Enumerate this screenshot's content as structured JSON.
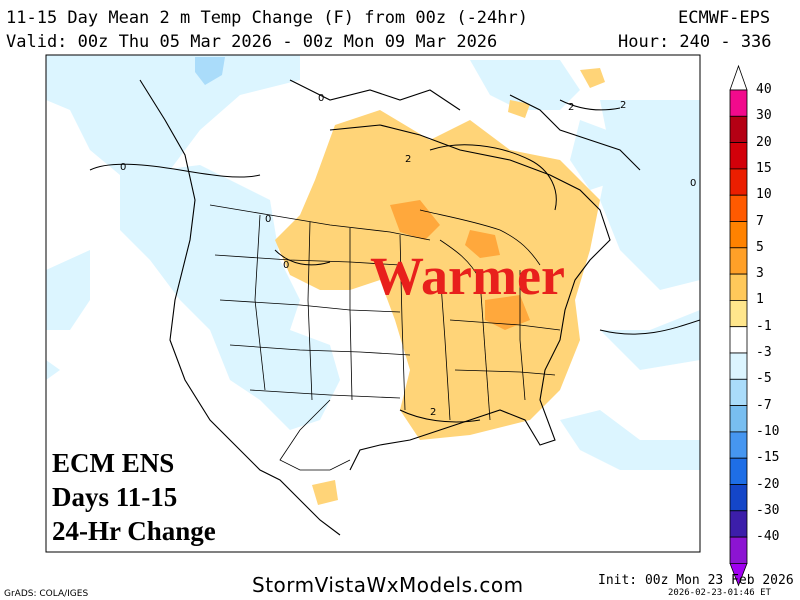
{
  "header": {
    "title": "11-15 Day Mean 2 m Temp Change (F) from 00z (-24hr)",
    "model": "ECMWF-EPS",
    "valid": "Valid: 00z Thu 05 Mar 2026 - 00z Mon 09 Mar 2026",
    "hour": "Hour: 240 - 336"
  },
  "overlay": {
    "line1": "ECM ENS",
    "line2": "Days 11-15",
    "line3": "24-Hr Change",
    "emphasis": "Warmer"
  },
  "colorbar": {
    "levels": [
      {
        "label": "40",
        "color": "#f20a8c"
      },
      {
        "label": "30",
        "color": "#b40014"
      },
      {
        "label": "20",
        "color": "#d2000a"
      },
      {
        "label": "15",
        "color": "#eb1e00"
      },
      {
        "label": "10",
        "color": "#ff5a00"
      },
      {
        "label": "7",
        "color": "#ff8200"
      },
      {
        "label": "5",
        "color": "#ffa028"
      },
      {
        "label": "3",
        "color": "#ffc85a"
      },
      {
        "label": "1",
        "color": "#ffe68c"
      },
      {
        "label": "-1",
        "color": "#ffffff"
      },
      {
        "label": "-3",
        "color": "#dcf5ff"
      },
      {
        "label": "-5",
        "color": "#aadcfa"
      },
      {
        "label": "-7",
        "color": "#78bef0"
      },
      {
        "label": "-10",
        "color": "#4696f0"
      },
      {
        "label": "-15",
        "color": "#1e6ee6"
      },
      {
        "label": "-20",
        "color": "#1446c8"
      },
      {
        "label": "-30",
        "color": "#3c1eaa"
      },
      {
        "label": "-40",
        "color": "#8c14d2"
      }
    ],
    "bottom_color": "#a000f0"
  },
  "contour_labels": [
    "2",
    "0",
    "0",
    "0",
    "0",
    "2",
    "0",
    "2",
    "2"
  ],
  "footer": {
    "grads": "GrADS: COLA/IGES",
    "site": "StormVistaWxModels.com",
    "init": "Init: 00z Mon 23 Feb 2026",
    "issued": "2026-02-23-01:46 ET"
  },
  "colors": {
    "land": "#ffffff",
    "warm_light": "#ffd478",
    "warm_mid": "#ffa83c",
    "cool_light": "#dcf5ff",
    "cool_mid": "#aadcfa",
    "boundaries": "#000000"
  }
}
